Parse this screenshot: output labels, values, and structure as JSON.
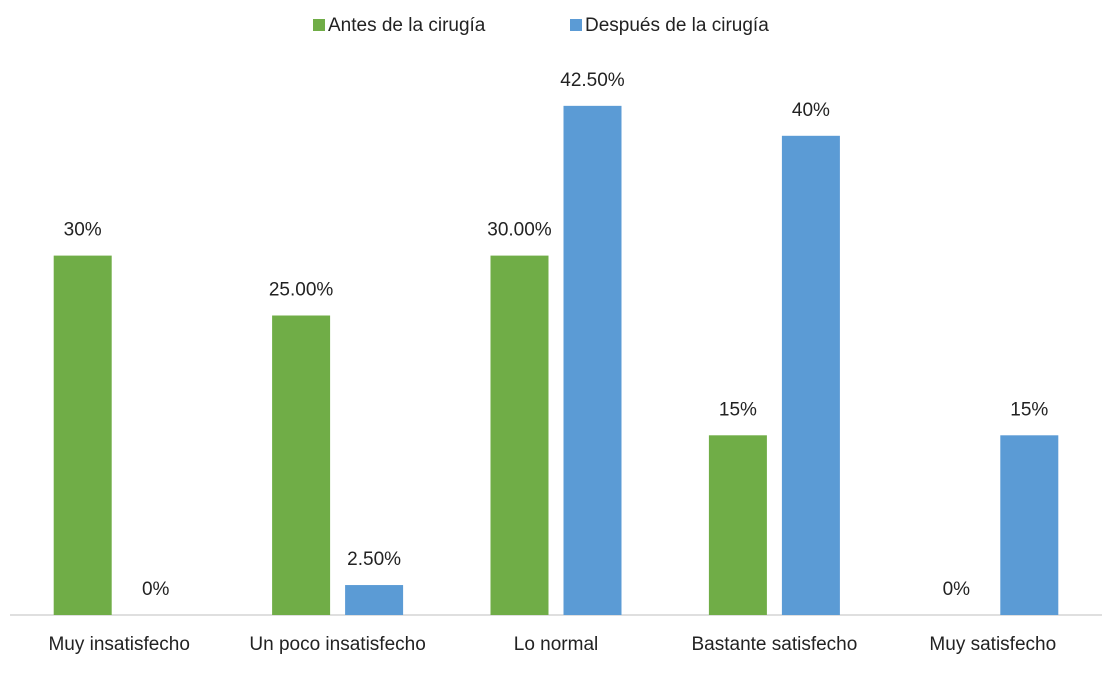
{
  "chart_data": {
    "type": "bar",
    "categories": [
      "Muy insatisfecho",
      "Un poco insatisfecho",
      "Lo normal",
      "Bastante satisfecho",
      "Muy satisfecho"
    ],
    "series": [
      {
        "name": "Antes de la cirugía",
        "color": "#70ad47",
        "values": [
          30,
          25,
          30,
          15,
          0
        ],
        "value_labels": [
          "30%",
          "25.00%",
          "30.00%",
          "15%",
          "0%"
        ]
      },
      {
        "name": "Después de la cirugía",
        "color": "#5b9bd5",
        "values": [
          0,
          2.5,
          42.5,
          40,
          15
        ],
        "value_labels": [
          "0%",
          "2.50%",
          "42.50%",
          "40%",
          "15%"
        ]
      }
    ],
    "ylim": [
      0,
      50
    ],
    "legend": "top"
  }
}
